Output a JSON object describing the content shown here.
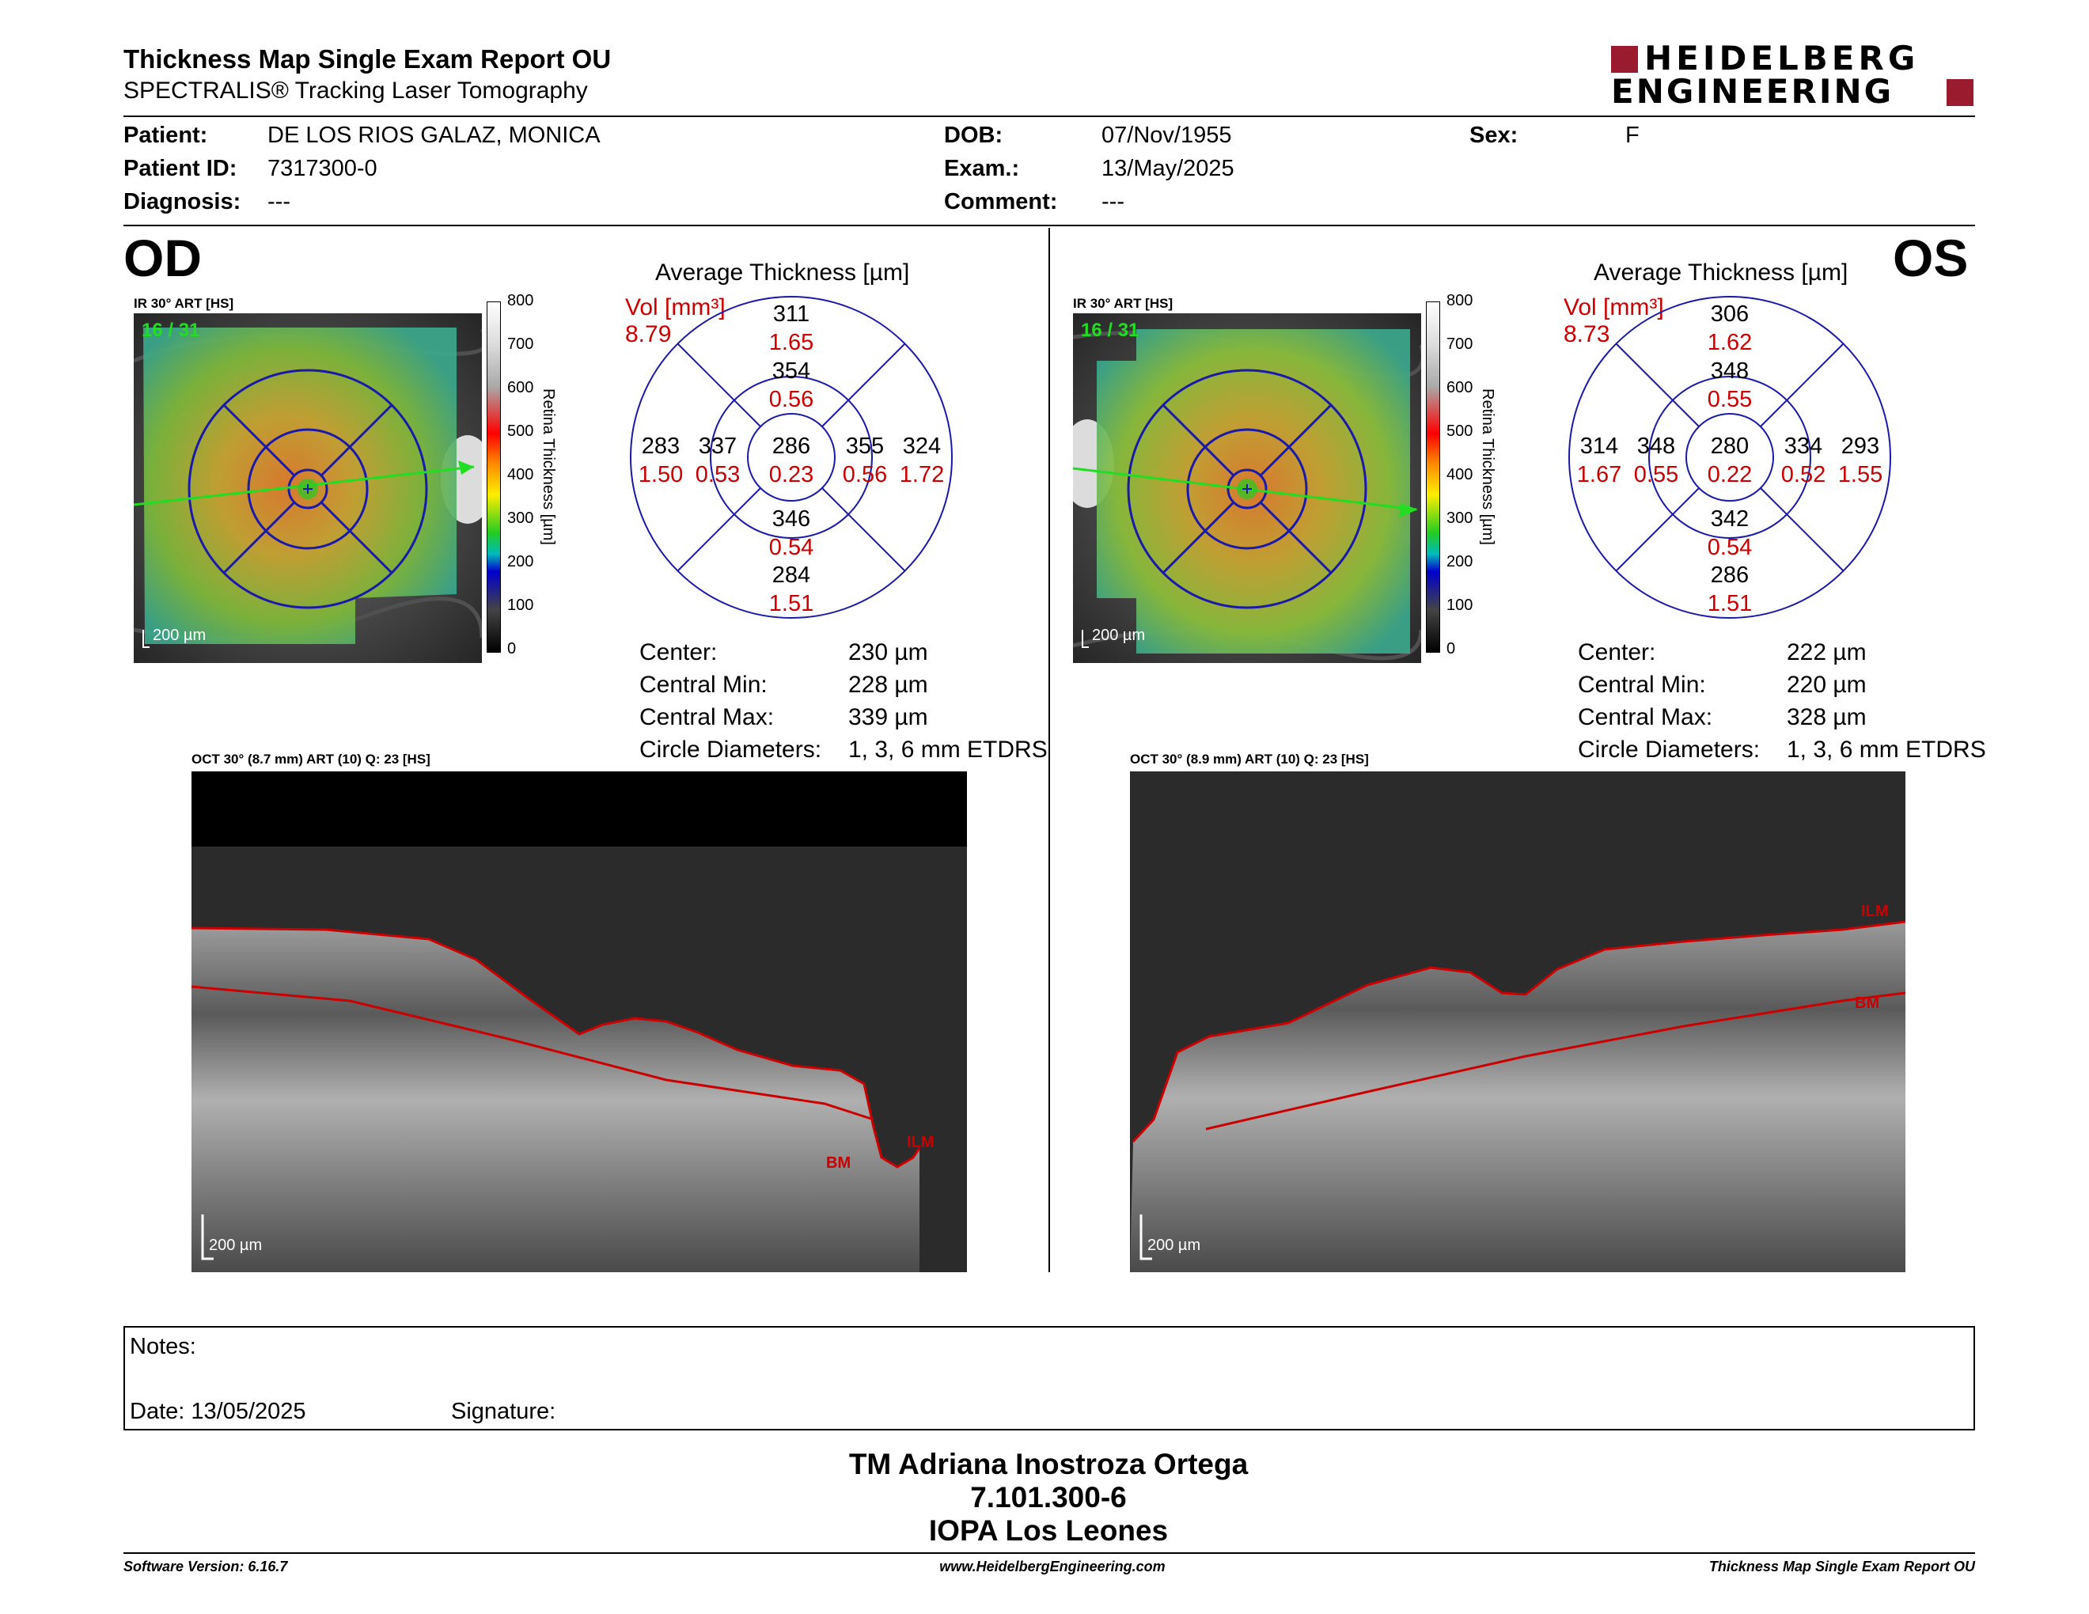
{
  "header": {
    "title": "Thickness Map Single Exam Report OU",
    "subtitle": "SPECTRALIS® Tracking Laser Tomography",
    "logo_line1": "HEIDELBERG",
    "logo_line2": "ENGINEERING",
    "brand_color": "#9a1b2e"
  },
  "patient": {
    "patient_label": "Patient:",
    "patient_value": "DE LOS RIOS GALAZ, MONICA",
    "id_label": "Patient ID:",
    "id_value": "7317300-0",
    "diagnosis_label": "Diagnosis:",
    "diagnosis_value": "---",
    "dob_label": "DOB:",
    "dob_value": "07/Nov/1955",
    "exam_label": "Exam.:",
    "exam_value": "13/May/2025",
    "comment_label": "Comment:",
    "comment_value": "---",
    "sex_label": "Sex:",
    "sex_value": "F"
  },
  "od": {
    "eye": "OD",
    "ir_header": "IR 30° ART [HS]",
    "frame_counter": "16 / 31",
    "scale_label": "200 µm",
    "avg_title": "Average Thickness [µm]",
    "vol_label": "Vol [mm³]",
    "vol_value": "8.79",
    "etdrs": {
      "outer_sup": "311",
      "outer_sup_vol": "1.65",
      "inner_sup": "354",
      "inner_sup_vol": "0.56",
      "outer_left": "283",
      "outer_left_vol": "1.50",
      "inner_left": "337",
      "inner_left_vol": "0.53",
      "center": "286",
      "center_vol": "0.23",
      "inner_right": "355",
      "inner_right_vol": "0.56",
      "outer_right": "324",
      "outer_right_vol": "1.72",
      "inner_inf": "346",
      "inner_inf_vol": "0.54",
      "outer_inf": "284",
      "outer_inf_vol": "1.51"
    },
    "stats": {
      "center_label": "Center:",
      "center_value": "230 µm",
      "min_label": "Central Min:",
      "min_value": "228 µm",
      "max_label": "Central Max:",
      "max_value": "339 µm",
      "diam_label": "Circle Diameters:",
      "diam_value": "1, 3, 6 mm ETDRS"
    },
    "oct_header": "OCT 30° (8.7 mm) ART (10) Q: 23 [HS]",
    "oct_scale": "200 µm",
    "ilm": "ILM",
    "bm": "BM"
  },
  "os": {
    "eye": "OS",
    "ir_header": "IR 30° ART [HS]",
    "frame_counter": "16 / 31",
    "scale_label": "200 µm",
    "avg_title": "Average Thickness [µm]",
    "vol_label": "Vol [mm³]",
    "vol_value": "8.73",
    "etdrs": {
      "outer_sup": "306",
      "outer_sup_vol": "1.62",
      "inner_sup": "348",
      "inner_sup_vol": "0.55",
      "outer_left": "314",
      "outer_left_vol": "1.67",
      "inner_left": "348",
      "inner_left_vol": "0.55",
      "center": "280",
      "center_vol": "0.22",
      "inner_right": "334",
      "inner_right_vol": "0.52",
      "outer_right": "293",
      "outer_right_vol": "1.55",
      "inner_inf": "342",
      "inner_inf_vol": "0.54",
      "outer_inf": "286",
      "outer_inf_vol": "1.51"
    },
    "stats": {
      "center_label": "Center:",
      "center_value": "222 µm",
      "min_label": "Central Min:",
      "min_value": "220 µm",
      "max_label": "Central Max:",
      "max_value": "328 µm",
      "diam_label": "Circle Diameters:",
      "diam_value": "1, 3, 6 mm ETDRS"
    },
    "oct_header": "OCT 30° (8.9 mm) ART (10) Q: 23 [HS]",
    "oct_scale": "200 µm",
    "ilm": "ILM",
    "bm": "BM"
  },
  "colorbar": {
    "ticks": [
      "800",
      "700",
      "600",
      "500",
      "400",
      "300",
      "200",
      "100",
      "0"
    ],
    "axis_label": "Retina  Thickness [µm]"
  },
  "notes": {
    "notes_label": "Notes:",
    "date_label": "Date: 13/05/2025",
    "signature_label": "Signature:"
  },
  "signature": {
    "name": "TM Adriana Inostroza Ortega",
    "rut": "7.101.300-6",
    "place": "IOPA Los Leones"
  },
  "footer": {
    "software": "Software Version: 6.16.7",
    "website": "www.HeidelbergEngineering.com",
    "report": "Thickness Map Single Exam Report OU"
  },
  "colors": {
    "etdrs_grid": "#1a1aaa",
    "volume_text": "#cc0000",
    "frame_counter": "#22dd22",
    "segmentation_line": "#cc0000"
  }
}
